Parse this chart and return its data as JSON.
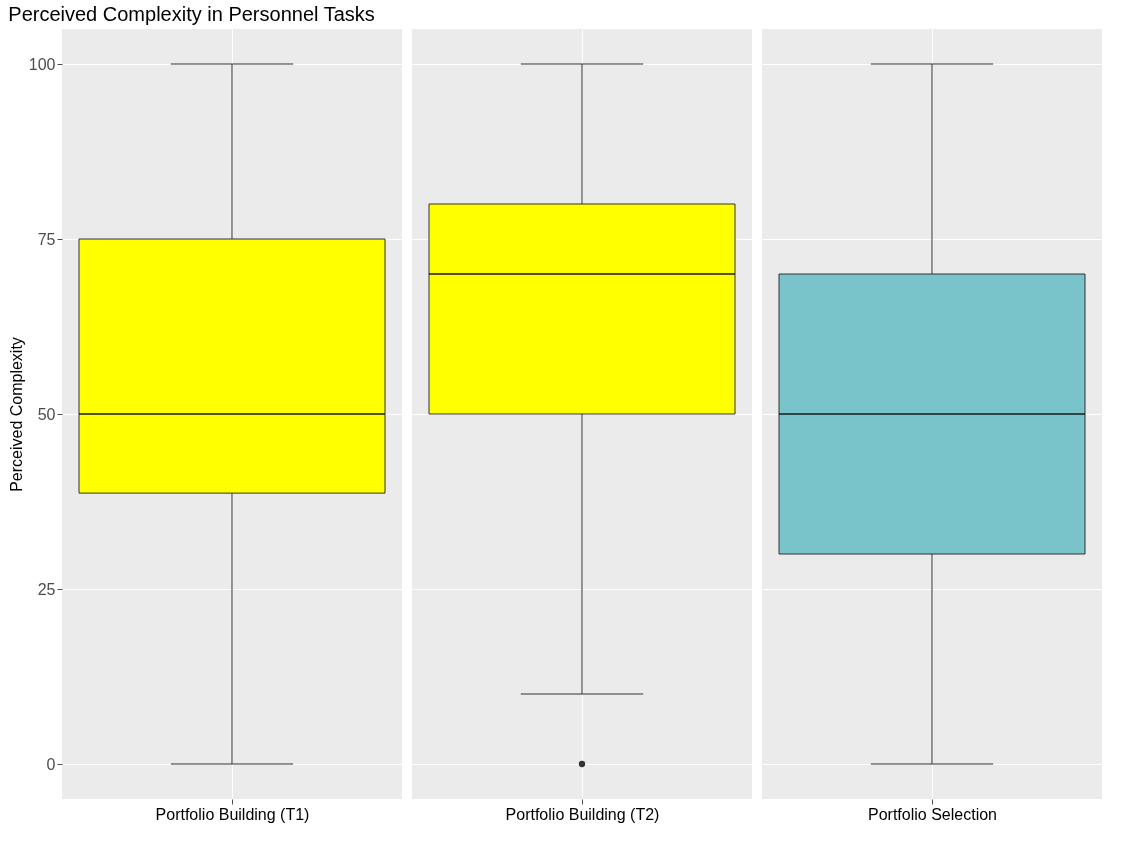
{
  "chart_data": {
    "type": "box",
    "title": "Perceived Complexity in Personnel Tasks",
    "ylabel": "Perceived Complexity",
    "categories": [
      "Portfolio Building (T1)",
      "Portfolio Building (T2)",
      "Portfolio Selection"
    ],
    "colors": [
      "#ffff00",
      "#ffff00",
      "#79c3cb"
    ],
    "boxes": [
      {
        "low": 0,
        "q1": 38.7,
        "median": 50,
        "q3": 75,
        "high": 100
      },
      {
        "low": 10,
        "q1": 50,
        "median": 70,
        "q3": 80,
        "high": 100,
        "outliers": [
          0
        ]
      },
      {
        "low": 0,
        "q1": 30,
        "median": 50,
        "q3": 70,
        "high": 100
      }
    ],
    "ylim": [
      -5,
      105
    ],
    "yticks": [
      0,
      25,
      50,
      75,
      100
    ],
    "grid": true
  }
}
